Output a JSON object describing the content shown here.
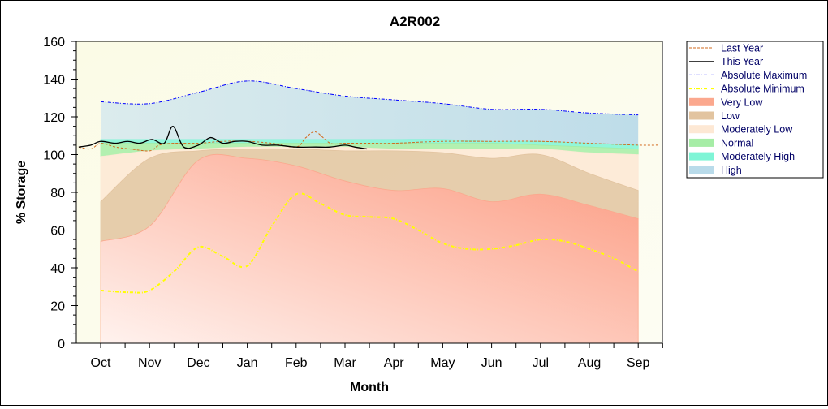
{
  "chart_data": {
    "type": "area",
    "title": "A2R002",
    "xlabel": "Month",
    "ylabel": "% Storage",
    "ylim": [
      0,
      160
    ],
    "yticks": [
      0,
      20,
      40,
      60,
      80,
      100,
      120,
      140,
      160
    ],
    "categories": [
      "Oct",
      "Nov",
      "Dec",
      "Jan",
      "Feb",
      "Mar",
      "Apr",
      "May",
      "Jun",
      "Jul",
      "Aug",
      "Sep"
    ],
    "legend_position": "right",
    "bands": [
      {
        "name": "High",
        "color": "#b9dbea",
        "upper": [
          128,
          127,
          133,
          139,
          135,
          131,
          129,
          127,
          124,
          124,
          122,
          121
        ],
        "lower": [
          108,
          108,
          108,
          108,
          108,
          108,
          108,
          108,
          107,
          107,
          106,
          105
        ]
      },
      {
        "name": "Moderately High",
        "color": "#7ff5d6",
        "upper": [
          108,
          108,
          108,
          108,
          108,
          108,
          108,
          108,
          107,
          107,
          106,
          105
        ],
        "lower": [
          106,
          106,
          106,
          106,
          106,
          106,
          106,
          106,
          106,
          105,
          104,
          103
        ]
      },
      {
        "name": "Normal",
        "color": "#a6eda6",
        "upper": [
          106,
          106,
          106,
          106,
          106,
          106,
          106,
          106,
          106,
          105,
          104,
          103
        ],
        "lower": [
          99,
          102,
          103,
          104,
          104,
          104,
          103,
          103,
          103,
          103,
          101,
          100
        ]
      },
      {
        "name": "Moderately Low",
        "color": "#fde8d4",
        "upper": [
          99,
          102,
          103,
          104,
          104,
          104,
          103,
          103,
          103,
          103,
          101,
          100
        ],
        "lower": [
          75,
          98,
          102,
          103,
          103,
          102,
          102,
          101,
          98,
          100,
          90,
          81
        ]
      },
      {
        "name": "Low",
        "color": "#e2c4a0",
        "upper": [
          75,
          98,
          102,
          103,
          103,
          102,
          102,
          101,
          98,
          100,
          90,
          81
        ],
        "lower": [
          54,
          62,
          97,
          98,
          94,
          86,
          81,
          82,
          75,
          79,
          73,
          66
        ]
      },
      {
        "name": "Very Low",
        "color": "#fba88e",
        "upper": [
          54,
          62,
          97,
          98,
          94,
          86,
          81,
          82,
          75,
          79,
          73,
          66
        ],
        "lower": [
          0,
          0,
          0,
          0,
          0,
          0,
          0,
          0,
          0,
          0,
          0,
          0
        ]
      }
    ],
    "series": [
      {
        "name": "Last Year",
        "color": "#d2691e",
        "style": "dashed",
        "x": [
          -0.45,
          -0.2,
          0,
          0.3,
          0.6,
          1,
          1.2,
          1.5,
          2,
          2.5,
          3,
          3.5,
          4,
          4.2,
          4.4,
          4.7,
          5,
          5.5,
          6,
          7,
          8,
          9,
          10,
          11,
          11.4
        ],
        "y": [
          104,
          103,
          106,
          104,
          103,
          102,
          105,
          106,
          106,
          107,
          107,
          106,
          104,
          109,
          112,
          106,
          106,
          106,
          106,
          107,
          107,
          107,
          106,
          105,
          105
        ]
      },
      {
        "name": "This Year",
        "color": "#000000",
        "style": "solid",
        "x": [
          -0.45,
          -0.2,
          0,
          0.3,
          0.55,
          0.8,
          1.05,
          1.3,
          1.48,
          1.7,
          2,
          2.25,
          2.5,
          2.75,
          3,
          3.3,
          3.6,
          4,
          4.4,
          4.7,
          5,
          5.2,
          5.45
        ],
        "y": [
          104,
          105,
          107,
          106,
          107,
          106,
          108,
          106,
          115,
          104,
          105,
          109,
          106,
          107,
          107,
          105,
          105,
          104,
          104,
          104,
          105,
          104,
          103
        ]
      },
      {
        "name": "Absolute Maximum",
        "color": "#0000ff",
        "style": "dashdot",
        "x": [
          0,
          1,
          2,
          3,
          4,
          5,
          6,
          7,
          8,
          9,
          10,
          11
        ],
        "y": [
          128,
          127,
          133,
          139,
          135,
          131,
          129,
          127,
          124,
          124,
          122,
          121
        ]
      },
      {
        "name": "Absolute Minimum",
        "color": "#ffff00",
        "style": "dashdot",
        "x": [
          0,
          0.6,
          1,
          1.5,
          2,
          2.5,
          3,
          3.5,
          4,
          4.5,
          5,
          5.5,
          6,
          6.5,
          7,
          7.5,
          8,
          8.5,
          9,
          9.5,
          10,
          10.5,
          11
        ],
        "y": [
          28,
          27,
          28,
          38,
          51,
          46,
          41,
          62,
          79,
          74,
          68,
          67,
          66,
          60,
          53,
          50,
          50,
          52,
          55,
          54,
          50,
          45,
          38
        ]
      }
    ],
    "legend": [
      "Last Year",
      "This Year",
      "Absolute Maximum",
      "Absolute Minimum",
      "Very Low",
      "Low",
      "Moderately Low",
      "Normal",
      "Moderately High",
      "High"
    ]
  }
}
